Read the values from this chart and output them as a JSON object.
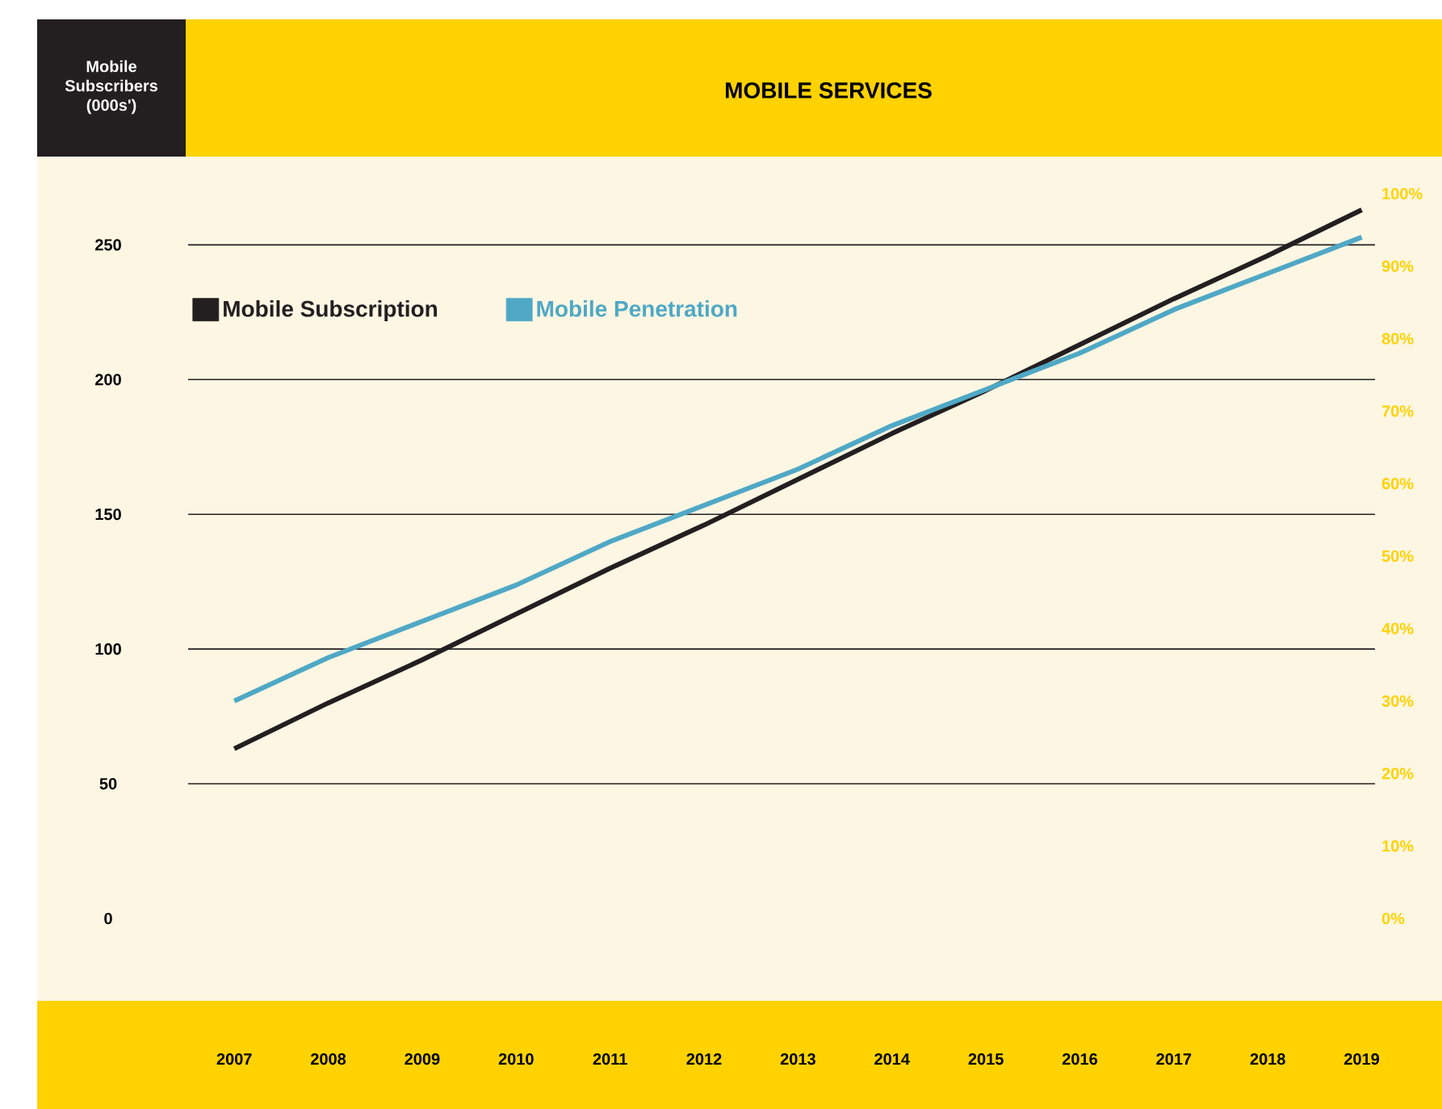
{
  "chart_data": {
    "type": "line",
    "title": "MOBILE SERVICES",
    "ylabel": "Mobile Subscribers (000s')",
    "categories": [
      "2007",
      "2008",
      "2009",
      "2010",
      "2011",
      "2012",
      "2013",
      "2014",
      "2015",
      "2016",
      "2017",
      "2018",
      "2019"
    ],
    "series": [
      {
        "name": "Mobile Subscription",
        "color": "#231f20",
        "values": [
          63,
          80,
          96,
          113,
          130,
          146,
          163,
          180,
          196,
          213,
          230,
          246,
          263
        ]
      },
      {
        "name": "Mobile Penetration",
        "color": "#4fa8c5",
        "axis": "y2",
        "values": [
          30,
          36,
          41,
          46,
          52,
          57,
          62,
          68,
          73,
          78,
          84,
          89,
          94
        ]
      }
    ],
    "ylim": [
      0,
      269
    ],
    "yticks": [
      0,
      50,
      100,
      150,
      200,
      250
    ],
    "y2lim": [
      0,
      100
    ],
    "y2ticks": [
      {
        "value": 0,
        "label": "0%"
      },
      {
        "value": 10,
        "label": "10%"
      },
      {
        "value": 20,
        "label": "20%"
      },
      {
        "value": 30,
        "label": "30%"
      },
      {
        "value": 40,
        "label": "40%"
      },
      {
        "value": 50,
        "label": "50%"
      },
      {
        "value": 60,
        "label": "60%"
      },
      {
        "value": 70,
        "label": "70%"
      },
      {
        "value": 80,
        "label": "80%"
      },
      {
        "value": 90,
        "label": "90%"
      },
      {
        "value": 100,
        "label": "100%"
      }
    ],
    "grid": "y",
    "legend": "top left",
    "marker": "none",
    "line_style": "solid"
  }
}
